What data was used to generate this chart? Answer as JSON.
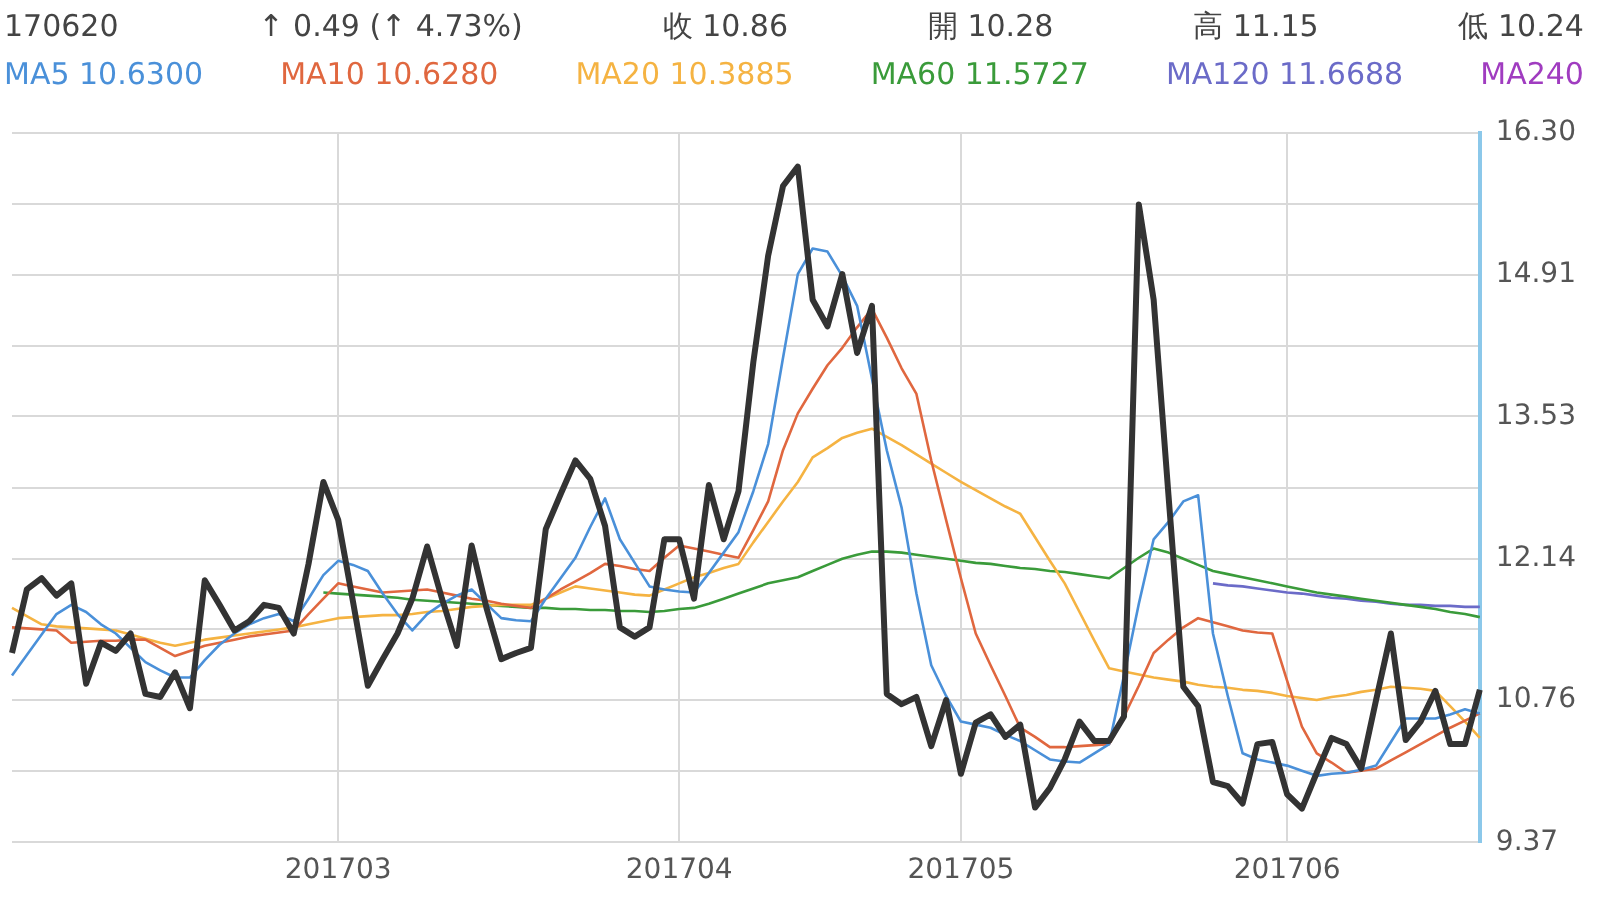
{
  "chart_data": {
    "type": "line",
    "annotations": [
      "170620",
      "↑ 0.49 (↑ 4.73%)",
      "收 10.86",
      "開 10.28",
      "高 11.15",
      "低 10.24"
    ],
    "categories": [
      null,
      null,
      null,
      null,
      null,
      null,
      null,
      null,
      null,
      null,
      null,
      null,
      null,
      null,
      null,
      null,
      null,
      null,
      null,
      null,
      null,
      null,
      "201703",
      null,
      null,
      null,
      null,
      null,
      null,
      null,
      null,
      null,
      null,
      null,
      null,
      null,
      null,
      null,
      null,
      null,
      null,
      null,
      null,
      null,
      null,
      "201704",
      null,
      null,
      null,
      null,
      null,
      null,
      null,
      null,
      null,
      null,
      null,
      null,
      null,
      null,
      null,
      null,
      null,
      null,
      "201705",
      null,
      null,
      null,
      null,
      null,
      null,
      null,
      null,
      null,
      null,
      null,
      null,
      null,
      null,
      null,
      null,
      null,
      null,
      null,
      null,
      null,
      "201706",
      null,
      null,
      null,
      null,
      null,
      null,
      null,
      null,
      null,
      null,
      null,
      null,
      null
    ],
    "series": [
      {
        "color": "#333333",
        "values": [
          11.22,
          11.84,
          11.95,
          11.78,
          11.9,
          10.92,
          11.32,
          11.24,
          11.41,
          10.82,
          10.79,
          11.03,
          10.68,
          11.93,
          11.69,
          11.44,
          11.53,
          11.69,
          11.66,
          11.41,
          12.09,
          12.89,
          12.52,
          11.72,
          10.9,
          11.16,
          11.41,
          11.75,
          12.26,
          11.75,
          11.29,
          12.27,
          11.66,
          11.16,
          11.22,
          11.27,
          12.43,
          12.77,
          13.1,
          12.92,
          12.46,
          11.47,
          11.38,
          11.47,
          12.33,
          12.33,
          11.75,
          12.86,
          12.33,
          12.8,
          14.06,
          15.1,
          15.78,
          15.97,
          14.67,
          14.41,
          14.92,
          14.15,
          14.61,
          10.82,
          10.72,
          10.79,
          10.31,
          10.76,
          10.04,
          10.54,
          10.62,
          10.4,
          10.52,
          9.71,
          9.9,
          10.18,
          10.55,
          10.36,
          10.36,
          10.6,
          15.6,
          14.67,
          12.76,
          10.89,
          10.7,
          9.96,
          9.92,
          9.75,
          10.33,
          10.35,
          9.84,
          9.7,
          10.05,
          10.39,
          10.33,
          10.09,
          10.76,
          11.41,
          10.37,
          10.55,
          10.85,
          10.33,
          10.33,
          10.86
        ]
      },
      {
        "name": "MA5 10.6300",
        "color": "#4a90d9",
        "values": [
          11.0,
          11.2,
          11.4,
          11.6,
          11.69,
          11.62,
          11.5,
          11.41,
          11.27,
          11.13,
          11.05,
          10.98,
          10.98,
          11.15,
          11.3,
          11.41,
          11.5,
          11.56,
          11.6,
          11.53,
          11.75,
          11.98,
          12.12,
          12.08,
          12.02,
          11.8,
          11.6,
          11.44,
          11.6,
          11.7,
          11.78,
          11.84,
          11.7,
          11.56,
          11.54,
          11.53,
          11.75,
          11.95,
          12.15,
          12.45,
          12.73,
          12.33,
          12.1,
          11.87,
          11.84,
          11.82,
          11.81,
          12.0,
          12.2,
          12.4,
          12.8,
          13.26,
          14.1,
          14.92,
          15.17,
          15.14,
          14.9,
          14.61,
          13.9,
          13.2,
          12.64,
          11.8,
          11.1,
          10.8,
          10.55,
          10.52,
          10.49,
          10.42,
          10.36,
          10.27,
          10.18,
          10.16,
          10.15,
          10.24,
          10.33,
          11.0,
          11.7,
          12.33,
          12.5,
          12.7,
          12.76,
          11.41,
          10.8,
          10.24,
          10.18,
          10.15,
          10.12,
          10.07,
          10.02,
          10.04,
          10.05,
          10.08,
          10.12,
          10.35,
          10.58,
          10.58,
          10.58,
          10.62,
          10.67,
          10.63
        ]
      },
      {
        "name": "MA10 10.6280",
        "color": "#e0673f",
        "values": [
          11.47,
          11.46,
          11.45,
          11.44,
          11.32,
          11.33,
          11.34,
          11.34,
          11.35,
          11.35,
          11.27,
          11.19,
          11.24,
          11.29,
          11.32,
          11.35,
          11.38,
          11.4,
          11.42,
          11.44,
          11.6,
          11.75,
          11.9,
          11.87,
          11.84,
          11.81,
          11.82,
          11.83,
          11.84,
          11.81,
          11.78,
          11.75,
          11.73,
          11.7,
          11.68,
          11.66,
          11.75,
          11.84,
          11.92,
          12.0,
          12.09,
          12.07,
          12.04,
          12.02,
          12.15,
          12.27,
          12.24,
          12.21,
          12.18,
          12.15,
          12.42,
          12.7,
          13.2,
          13.56,
          13.8,
          14.03,
          14.2,
          14.4,
          14.58,
          14.3,
          14.0,
          13.75,
          13.1,
          12.52,
          11.95,
          11.41,
          11.1,
          10.8,
          10.49,
          10.4,
          10.3,
          10.3,
          10.31,
          10.32,
          10.33,
          10.6,
          10.9,
          11.22,
          11.35,
          11.47,
          11.56,
          11.52,
          11.48,
          11.44,
          11.42,
          11.41,
          10.95,
          10.5,
          10.24,
          10.15,
          10.05,
          10.07,
          10.09,
          10.17,
          10.25,
          10.33,
          10.41,
          10.49,
          10.56,
          10.63
        ]
      },
      {
        "name": "MA20 10.3885",
        "color": "#f5b342",
        "values": [
          11.66,
          11.58,
          11.5,
          11.48,
          11.47,
          11.46,
          11.45,
          11.44,
          11.4,
          11.36,
          11.32,
          11.29,
          11.32,
          11.35,
          11.37,
          11.39,
          11.41,
          11.43,
          11.45,
          11.47,
          11.5,
          11.53,
          11.56,
          11.57,
          11.58,
          11.59,
          11.59,
          11.6,
          11.62,
          11.63,
          11.65,
          11.67,
          11.68,
          11.69,
          11.69,
          11.69,
          11.75,
          11.81,
          11.87,
          11.85,
          11.83,
          11.81,
          11.79,
          11.78,
          11.84,
          11.9,
          11.96,
          12.0,
          12.05,
          12.09,
          12.3,
          12.5,
          12.7,
          12.89,
          13.13,
          13.22,
          13.32,
          13.37,
          13.41,
          13.33,
          13.25,
          13.16,
          13.07,
          12.98,
          12.89,
          12.81,
          12.73,
          12.65,
          12.58,
          12.35,
          12.12,
          11.9,
          11.62,
          11.34,
          11.07,
          11.04,
          11.01,
          10.98,
          10.96,
          10.94,
          10.91,
          10.89,
          10.88,
          10.86,
          10.85,
          10.83,
          10.8,
          10.78,
          10.76,
          10.79,
          10.81,
          10.84,
          10.86,
          10.89,
          10.88,
          10.87,
          10.85,
          10.7,
          10.55,
          10.39
        ]
      },
      {
        "name": "MA60 11.5727",
        "color": "#3a9b3a",
        "values": [
          null,
          null,
          null,
          null,
          null,
          null,
          null,
          null,
          null,
          null,
          null,
          null,
          null,
          null,
          null,
          null,
          null,
          null,
          null,
          null,
          null,
          11.81,
          11.8,
          11.79,
          11.78,
          11.77,
          11.76,
          11.74,
          11.73,
          11.72,
          11.71,
          11.7,
          11.69,
          11.68,
          11.67,
          11.66,
          11.66,
          11.65,
          11.65,
          11.64,
          11.64,
          11.63,
          11.63,
          11.62,
          11.63,
          11.65,
          11.66,
          11.7,
          11.75,
          11.8,
          11.85,
          11.9,
          11.93,
          11.96,
          12.02,
          12.08,
          12.14,
          12.18,
          12.21,
          12.21,
          12.2,
          12.18,
          12.16,
          12.14,
          12.12,
          12.1,
          12.09,
          12.07,
          12.05,
          12.04,
          12.02,
          12.01,
          11.99,
          11.97,
          11.95,
          12.05,
          12.15,
          12.24,
          12.2,
          12.14,
          12.08,
          12.02,
          11.99,
          11.96,
          11.93,
          11.9,
          11.87,
          11.84,
          11.81,
          11.79,
          11.77,
          11.75,
          11.73,
          11.71,
          11.69,
          11.67,
          11.65,
          11.62,
          11.6,
          11.57
        ]
      },
      {
        "name": "MA120 11.6688",
        "color": "#6b6bc8",
        "values": [
          null,
          null,
          null,
          null,
          null,
          null,
          null,
          null,
          null,
          null,
          null,
          null,
          null,
          null,
          null,
          null,
          null,
          null,
          null,
          null,
          null,
          null,
          null,
          null,
          null,
          null,
          null,
          null,
          null,
          null,
          null,
          null,
          null,
          null,
          null,
          null,
          null,
          null,
          null,
          null,
          null,
          null,
          null,
          null,
          null,
          null,
          null,
          null,
          null,
          null,
          null,
          null,
          null,
          null,
          null,
          null,
          null,
          null,
          null,
          null,
          null,
          null,
          null,
          null,
          null,
          null,
          null,
          null,
          null,
          null,
          null,
          null,
          null,
          null,
          null,
          null,
          null,
          null,
          null,
          null,
          null,
          11.9,
          11.88,
          11.87,
          11.85,
          11.83,
          11.81,
          11.8,
          11.78,
          11.76,
          11.75,
          11.73,
          11.72,
          11.7,
          11.69,
          11.69,
          11.68,
          11.68,
          11.67,
          11.67
        ]
      },
      {
        "name": "MA240",
        "color": "#a03cc0",
        "values": [
          null,
          null,
          null,
          null,
          null,
          null,
          null,
          null,
          null,
          null,
          null,
          null,
          null,
          null,
          null,
          null,
          null,
          null,
          null,
          null,
          null,
          null,
          null,
          null,
          null,
          null,
          null,
          null,
          null,
          null,
          null,
          null,
          null,
          null,
          null,
          null,
          null,
          null,
          null,
          null,
          null,
          null,
          null,
          null,
          null,
          null,
          null,
          null,
          null,
          null,
          null,
          null,
          null,
          null,
          null,
          null,
          null,
          null,
          null,
          null,
          null,
          null,
          null,
          null,
          null,
          null,
          null,
          null,
          null,
          null,
          null,
          null,
          null,
          null,
          null,
          null,
          null,
          null,
          null,
          null,
          null,
          null,
          null,
          null,
          null,
          null,
          null,
          null,
          null,
          null,
          null,
          null,
          null,
          null,
          null,
          null,
          null,
          null,
          null,
          null
        ]
      }
    ],
    "ylim": [
      9.37,
      16.3
    ],
    "yticks": [
      9.37,
      {
        "value": 10.065,
        "label": null
      },
      10.76,
      {
        "value": 11.45,
        "label": null
      },
      12.14,
      {
        "value": 12.835,
        "label": null
      },
      13.53,
      {
        "value": 14.22,
        "label": null
      },
      14.91,
      {
        "value": 15.605,
        "label": null
      },
      {
        "value": 16.3,
        "label": "16.30"
      }
    ],
    "grid": true,
    "legend": "top",
    "marker": "none",
    "line_style": "solid"
  }
}
